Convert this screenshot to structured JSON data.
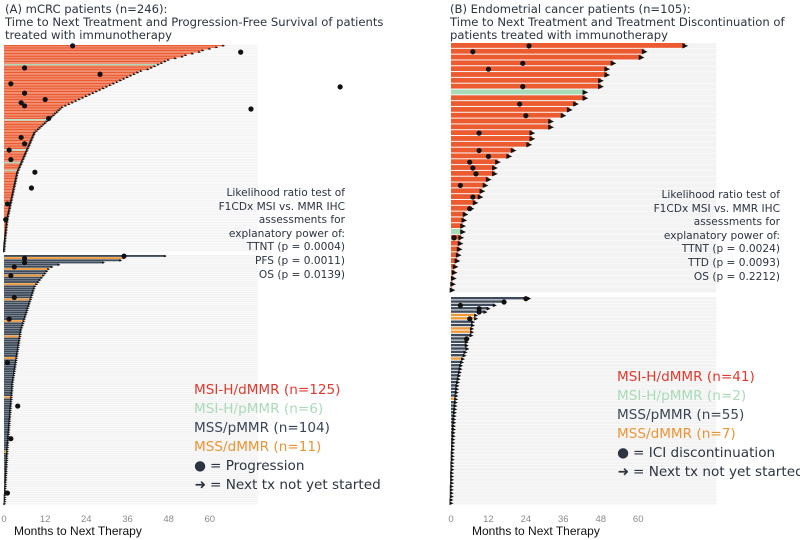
{
  "colors": {
    "MSI-H/dMMR": "#ec5a30",
    "MSI-H/pMMR": "#a9dbb9",
    "MSS/pMMR": "#3e4b5a",
    "MSS/dMMR": "#ee9a3a",
    "legend_red": "#e03a2e",
    "legend_green": "#a9dbb9",
    "legend_slate": "#3a4656",
    "legend_orange": "#ea9535",
    "background_bar": "#f3f3f3"
  },
  "panels": [
    {
      "title_line1": "(A) mCRC patients (n=246):",
      "title_line2": "Time to Next Treatment and Progression-Free Survival of patients",
      "title_line3": "treated with immunotherapy",
      "lr_test": [
        "Likelihood ratio test of",
        "F1CDx MSI vs. MMR IHC",
        "assessments for",
        "explanatory power of:",
        "TTNT (p = 0.0004)",
        "PFS (p = 0.0011)",
        "OS (p = 0.0139)"
      ],
      "legend": [
        "MSI-H/dMMR (n=125)",
        "MSI-H/pMMR (n=6)",
        "MSS/pMMR (n=104)",
        "MSS/dMMR (n=11)"
      ],
      "marker_legend": [
        "= Progression",
        "= Next tx not yet started"
      ],
      "xlabel": "Months to Next Therapy"
    },
    {
      "title_line1": "(B) Endometrial cancer patients (n=105):",
      "title_line2": "Time to Next Treatment and Treatment Discontinuation of",
      "title_line3": "patients treated with immunotherapy",
      "lr_test": [
        "Likelihood ratio test of",
        "F1CDx MSI vs. MMR IHC",
        "assessments for",
        "explanatory power of:",
        "TTNT (p = 0.0024)",
        "TTD (p = 0.0093)",
        "OS (p = 0.2212)"
      ],
      "legend": [
        "MSI-H/dMMR (n=41)",
        "MSI-H/pMMR (n=2)",
        "MSS/pMMR (n=55)",
        "MSS/dMMR (n=7)"
      ],
      "marker_legend": [
        "= ICI discontinuation",
        "= Next tx not yet started"
      ],
      "xlabel": "Months to Next Therapy"
    }
  ],
  "chart_data": [
    {
      "type": "bar",
      "subtype": "swimmer",
      "title": "(A) mCRC patients (n=246): Time to Next Treatment and Progression-Free Survival of patients treated with immunotherapy",
      "xlabel": "Months to Next Therapy",
      "xticks": [
        0,
        12,
        24,
        36,
        48,
        60
      ],
      "xlim": [
        0,
        74
      ],
      "group_names": [
        "MSI-H/dMMR",
        "MSI-H/pMMR",
        "MSS/pMMR",
        "MSS/dMMR"
      ],
      "block_sizes": [
        131,
        115
      ],
      "block_groups": [
        0,
        2
      ],
      "override_rows": {
        "1": [
          12,
          47,
          66,
          74,
          79,
          100
        ],
        "3": [
          132,
          137,
          140,
          144,
          151,
          161,
          168,
          178,
          196,
          221,
          236
        ]
      },
      "values": [
        64,
        62,
        60,
        58,
        57,
        55,
        53,
        52,
        50,
        48,
        47,
        46,
        45,
        44,
        43,
        42,
        40,
        39,
        38,
        37,
        36,
        35,
        34,
        33,
        32,
        31,
        30,
        29,
        28,
        27,
        26,
        25,
        24,
        23,
        22,
        21,
        20,
        19,
        18,
        17,
        16.5,
        16,
        15.5,
        15,
        14.5,
        14,
        13.5,
        13,
        12.5,
        12,
        11.5,
        11,
        10.5,
        10,
        9.5,
        9,
        8.8,
        8.6,
        8.4,
        8.2,
        8,
        7.8,
        7.6,
        7.4,
        7.2,
        7,
        6.8,
        6.6,
        6.4,
        6.2,
        6,
        5.8,
        5.6,
        5.4,
        5.2,
        5,
        4.8,
        4.6,
        4.4,
        4.2,
        4,
        3.9,
        3.8,
        3.7,
        3.6,
        3.5,
        3.4,
        3.3,
        3.2,
        3.1,
        3,
        2.9,
        2.8,
        2.7,
        2.6,
        2.5,
        2.4,
        2.3,
        2.2,
        2.1,
        2,
        1.9,
        1.8,
        1.7,
        1.6,
        1.5,
        1.4,
        1.3,
        1.2,
        1.1,
        1,
        0.95,
        0.9,
        0.85,
        0.8,
        0.75,
        0.7,
        0.65,
        0.6,
        0.55,
        0.5,
        0.45,
        0.4,
        0.35,
        0.3,
        0.25,
        0.2,
        0.2,
        0.15,
        0.1,
        0.1,
        47,
        35,
        34,
        29,
        16,
        14,
        13,
        12.5,
        12,
        11.5,
        11,
        10.5,
        10,
        9.5,
        9,
        8.8,
        8.6,
        8.4,
        8.2,
        8,
        7.8,
        7.6,
        7.4,
        7.2,
        7,
        6.8,
        6.6,
        6.4,
        6.2,
        6,
        5.8,
        5.6,
        5.4,
        5.2,
        5,
        4.9,
        4.8,
        4.7,
        4.6,
        4.5,
        4.4,
        4.3,
        4.2,
        4.1,
        4,
        3.9,
        3.8,
        3.7,
        3.6,
        3.5,
        3.4,
        3.3,
        3.2,
        3.1,
        3,
        2.9,
        2.8,
        2.7,
        2.6,
        2.5,
        2.5,
        2.4,
        2.4,
        2.3,
        2.3,
        2.2,
        2.2,
        2.1,
        2.1,
        2,
        2,
        1.9,
        1.9,
        1.8,
        1.8,
        1.7,
        1.7,
        1.6,
        1.6,
        1.5,
        1.5,
        1.4,
        1.4,
        1.3,
        1.3,
        1.2,
        1.2,
        1.1,
        1.1,
        1,
        1,
        1,
        0.9,
        0.9,
        0.9,
        0.8,
        0.8,
        0.8,
        0.7,
        0.7,
        0.7,
        0.6,
        0.6,
        0.6,
        0.5,
        0.5,
        0.5,
        0.4,
        0.4,
        0.4,
        0.3,
        0.3,
        0.3,
        0.3,
        0.2
      ],
      "progression_events": [
        [
          0,
          20
        ],
        [
          4,
          69
        ],
        [
          14,
          6
        ],
        [
          18,
          28
        ],
        [
          24,
          2
        ],
        [
          26,
          98
        ],
        [
          30,
          6
        ],
        [
          34,
          12
        ],
        [
          36,
          5
        ],
        [
          38,
          6
        ],
        [
          40,
          72
        ],
        [
          46,
          13
        ],
        [
          58,
          5
        ],
        [
          62,
          6
        ],
        [
          66,
          1.5
        ],
        [
          72,
          2
        ],
        [
          80,
          9
        ],
        [
          90,
          8
        ],
        [
          100,
          1
        ],
        [
          110,
          0.5
        ],
        [
          131,
          35
        ],
        [
          132,
          6
        ],
        [
          134,
          6
        ],
        [
          136,
          3
        ],
        [
          140,
          2
        ],
        [
          150,
          3
        ],
        [
          160,
          1.5
        ],
        [
          180,
          1
        ],
        [
          200,
          4
        ],
        [
          215,
          2
        ],
        [
          240,
          1
        ]
      ]
    },
    {
      "type": "bar",
      "subtype": "swimmer",
      "title": "(B) Endometrial cancer patients (n=105): Time to Next Treatment and Treatment Discontinuation of patients treated with immunotherapy",
      "xlabel": "Months to Next Therapy",
      "xticks": [
        0,
        12,
        24,
        36,
        48,
        60
      ],
      "xlim": [
        0,
        85
      ],
      "group_names": [
        "MSI-H/dMMR",
        "MSI-H/pMMR",
        "MSS/pMMR",
        "MSS/dMMR"
      ],
      "block_sizes": [
        43,
        62
      ],
      "block_groups": [
        0,
        2
      ],
      "override_rows": {
        "1": [
          8,
          32
        ],
        "3": [
          48,
          49,
          52,
          53,
          61,
          73,
          88
        ]
      },
      "values": [
        75,
        62,
        61,
        52,
        50,
        50,
        48,
        48,
        43,
        43,
        40,
        38,
        36,
        32,
        32,
        26,
        26,
        25,
        20,
        18.6,
        15,
        14,
        14,
        12,
        11,
        10,
        9.4,
        7.8,
        6.5,
        4.6,
        4.2,
        3.8,
        3.8,
        3.2,
        3,
        2.7,
        2.4,
        2,
        1.4,
        1.1,
        0.8,
        0.6,
        0.4,
        25,
        17,
        14,
        12,
        11,
        8,
        8,
        7,
        7,
        6.7,
        6.7,
        6.5,
        5.4,
        5,
        5,
        5.2,
        4.6,
        4.3,
        3.8,
        3.5,
        3.2,
        3,
        2.8,
        2.6,
        2.4,
        2.2,
        2,
        1.9,
        1.8,
        1.7,
        1.6,
        1.5,
        1.4,
        1.3,
        1.2,
        1.1,
        1,
        1,
        0.9,
        0.9,
        0.8,
        0.8,
        0.7,
        0.7,
        0.6,
        0.6,
        0.5,
        0.5,
        0.5,
        0.4,
        0.4,
        0.4,
        0.3,
        0.3,
        0.3,
        0.3,
        0.2,
        0.2,
        0.2,
        0.2,
        0.1,
        0.1
      ],
      "discontinuation_events": [
        [
          0,
          25
        ],
        [
          1,
          7
        ],
        [
          3,
          23
        ],
        [
          4,
          12
        ],
        [
          7,
          23
        ],
        [
          10,
          22
        ],
        [
          12,
          24
        ],
        [
          15,
          9
        ],
        [
          18,
          9
        ],
        [
          19,
          12
        ],
        [
          20,
          6
        ],
        [
          21,
          7
        ],
        [
          22,
          8
        ],
        [
          24,
          3
        ],
        [
          26,
          7
        ],
        [
          28,
          6
        ],
        [
          33,
          1
        ],
        [
          43,
          24
        ],
        [
          44,
          17
        ],
        [
          45,
          3
        ],
        [
          46,
          9
        ],
        [
          47,
          9
        ],
        [
          49,
          6
        ],
        [
          55,
          5
        ]
      ]
    }
  ]
}
